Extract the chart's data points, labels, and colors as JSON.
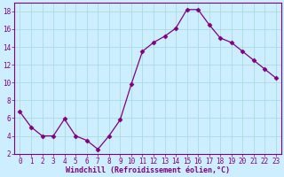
{
  "x": [
    0,
    1,
    2,
    3,
    4,
    5,
    6,
    7,
    8,
    9,
    10,
    11,
    12,
    13,
    14,
    15,
    16,
    17,
    18,
    19,
    20,
    21,
    22,
    23
  ],
  "y": [
    6.7,
    5.0,
    4.0,
    4.0,
    5.9,
    4.0,
    3.5,
    2.5,
    4.0,
    5.8,
    9.8,
    13.5,
    14.5,
    15.2,
    16.1,
    18.2,
    18.2,
    16.5,
    15.0,
    14.5,
    13.5,
    12.5,
    11.5,
    10.5
  ],
  "line_color": "#800080",
  "marker": "D",
  "marker_size": 2.5,
  "bg_color": "#cceeff",
  "grid_color": "#aadddd",
  "xlabel": "Windchill (Refroidissement éolien,°C)",
  "xlabel_color": "#800080",
  "tick_color": "#800080",
  "spine_color": "#800080",
  "ylim": [
    2,
    19
  ],
  "xlim": [
    -0.5,
    23.5
  ],
  "yticks": [
    2,
    4,
    6,
    8,
    10,
    12,
    14,
    16,
    18
  ],
  "xticks": [
    0,
    1,
    2,
    3,
    4,
    5,
    6,
    7,
    8,
    9,
    10,
    11,
    12,
    13,
    14,
    15,
    16,
    17,
    18,
    19,
    20,
    21,
    22,
    23
  ],
  "tick_fontsize": 5.5,
  "xlabel_fontsize": 6.0
}
